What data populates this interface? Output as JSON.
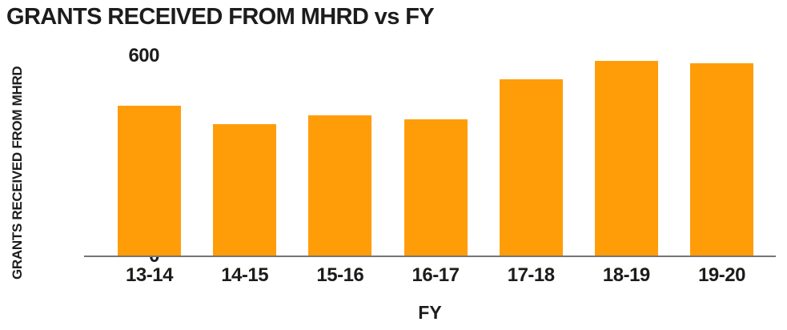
{
  "chart_data": {
    "type": "bar",
    "title": "GRANTS RECEIVED FROM MHRD vs FY",
    "xlabel": "FY",
    "ylabel": "GRANTS RECEIVED FROM MHRD",
    "categories": [
      "13-14",
      "14-15",
      "15-16",
      "16-17",
      "17-18",
      "18-19",
      "19-20"
    ],
    "values": [
      448,
      394,
      421,
      407,
      527,
      584,
      575
    ],
    "ylim": [
      0,
      600
    ],
    "yticks": [
      0,
      200,
      400,
      600
    ],
    "grid": false,
    "legend": false,
    "bar_color": "#FF9D09",
    "axis_line_color": "#757575",
    "text_color": "#1C1C1C",
    "background_color": "#FFFFFF"
  }
}
